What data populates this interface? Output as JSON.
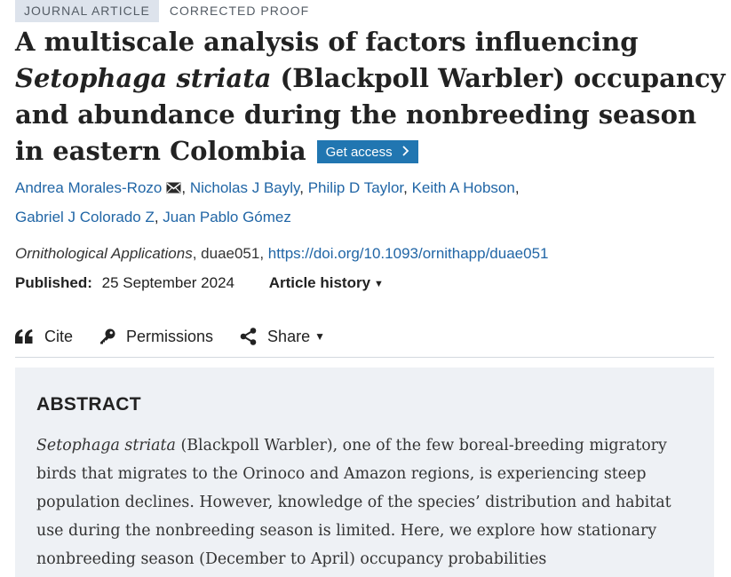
{
  "tags": {
    "type": "JOURNAL ARTICLE",
    "status": "CORRECTED PROOF"
  },
  "title": {
    "species": "Setophaga striata",
    "before_species": "A multiscale analysis of factors influencing ",
    "after_species": " (Blackpoll Warbler) occupancy and abundance during the nonbreeding season in eastern Colombia"
  },
  "get_access": {
    "label": "Get access",
    "icon": "chevron-right-icon"
  },
  "authors": [
    {
      "name": "Andrea Morales-Rozo",
      "has_email": true
    },
    {
      "name": "Nicholas J Bayly"
    },
    {
      "name": "Philip D Taylor"
    },
    {
      "name": "Keith A Hobson"
    },
    {
      "name": "Gabriel J Colorado Z"
    },
    {
      "name": "Juan Pablo Gómez"
    }
  ],
  "citation": {
    "journal": "Ornithological Applications",
    "article_id": "duae051",
    "doi": "https://doi.org/10.1093/ornithapp/duae051"
  },
  "published": {
    "label": "Published:",
    "date": "25 September 2024",
    "history_label": "Article history"
  },
  "actions": {
    "cite": "Cite",
    "permissions": "Permissions",
    "share": "Share"
  },
  "abstract": {
    "heading": "ABSTRACT",
    "species": "Setophaga striata",
    "text": " (Blackpoll Warbler), one of the few boreal-breeding migratory birds that migrates to the Orinoco and Amazon regions, is experiencing steep population declines. However, knowledge of the species’ distribution and habitat use during the nonbreeding season is limited. Here, we explore how stationary nonbreeding season (December to April) occupancy probabilities"
  },
  "colors": {
    "link": "#2166a6",
    "button": "#2176b1",
    "tag_bg": "#dde3ec",
    "abstract_bg": "#eef1f5"
  }
}
